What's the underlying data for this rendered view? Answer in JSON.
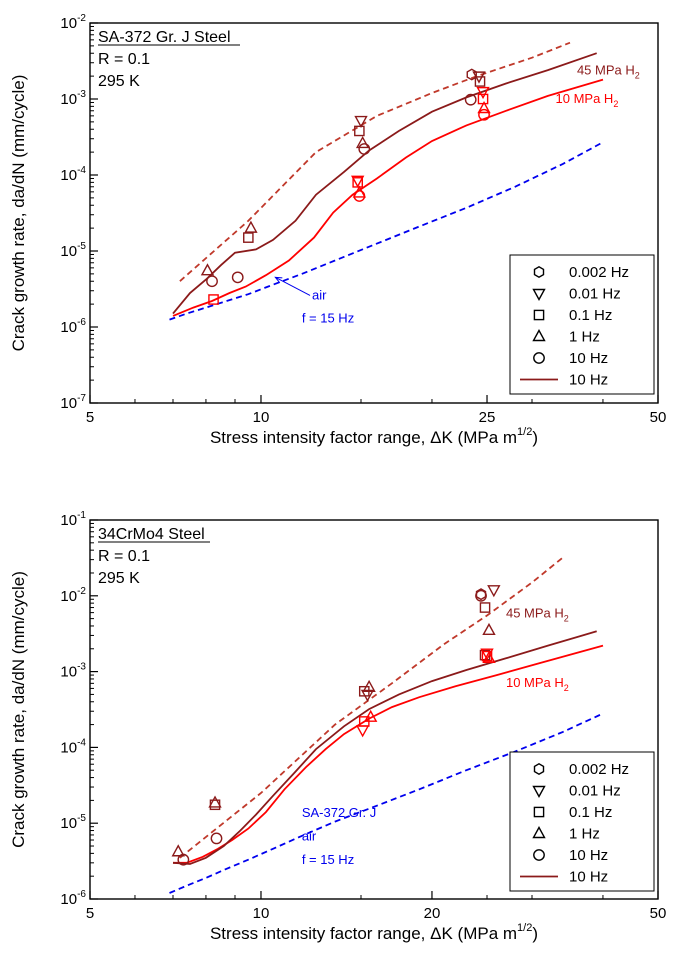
{
  "chart_data": [
    {
      "type": "scatter",
      "log_x": true,
      "log_y": true,
      "xlim": [
        5,
        50
      ],
      "ylim": [
        1e-07,
        0.01
      ],
      "xticks": [
        5,
        10,
        25,
        50
      ],
      "yticks": [
        {
          "v": 1e-07,
          "m": "10",
          "e": "-7"
        },
        {
          "v": 1e-06,
          "m": "10",
          "e": "-6"
        },
        {
          "v": 1e-05,
          "m": "10",
          "e": "-5"
        },
        {
          "v": 0.0001,
          "m": "10",
          "e": "-4"
        },
        {
          "v": 0.001,
          "m": "10",
          "e": "-3"
        },
        {
          "v": 0.01,
          "m": "10",
          "e": "-2"
        }
      ],
      "xlabel": {
        "main": "Stress intensity factor range, ΔK  (MPa m",
        "sup": "1/2",
        "end": ")"
      },
      "ylabel": "Crack growth rate, da/dN  (mm/cycle)",
      "info": {
        "title": "SA-372 Gr. J Steel",
        "line1": "R = 0.1",
        "line2": "295 K"
      },
      "annotations": [
        {
          "id": "label-45",
          "text": "45 MPa H",
          "sub": "2",
          "color": "#8b1a1a",
          "x": 36,
          "y": 0.0021
        },
        {
          "id": "label-10",
          "text": "10 MPa H",
          "sub": "2",
          "color": "#ff0000",
          "x": 33,
          "y": 0.00088
        },
        {
          "id": "label-air",
          "text": "air",
          "color": "#0000ee",
          "x": 12.3,
          "y": 2.3e-06
        },
        {
          "id": "label-f",
          "text": "f = 15 Hz",
          "color": "#0000ee",
          "x": 11.8,
          "y": 1.15e-06
        }
      ],
      "air_arrow": {
        "from": [
          12.2,
          2.6e-06
        ],
        "to": [
          10.6,
          4.5e-06
        ]
      },
      "legend": [
        {
          "marker": "hexagon",
          "label": "0.002 Hz"
        },
        {
          "marker": "triangle-down",
          "label": "0.01 Hz"
        },
        {
          "marker": "square",
          "label": "0.1 Hz"
        },
        {
          "marker": "triangle-up",
          "label": "1 Hz"
        },
        {
          "marker": "circle",
          "label": "10 Hz"
        },
        {
          "marker": "line",
          "label": "10 Hz"
        }
      ],
      "series": [
        {
          "key": "air",
          "color": "#0000ee",
          "dash": true,
          "x": [
            6.9,
            7.4,
            8.0,
            8.7,
            9.5,
            10.5,
            11.8,
            13.5,
            16,
            19,
            23,
            28,
            34,
            40
          ],
          "y": [
            1.25e-06,
            1.5e-06,
            1.8e-06,
            2.2e-06,
            2.7e-06,
            3.6e-06,
            5e-06,
            7.5e-06,
            1.25e-05,
            2.1e-05,
            3.7e-05,
            7e-05,
            0.00014,
            0.00027
          ]
        },
        {
          "key": "h2-10-curve",
          "color": "#ff0000",
          "dash": false,
          "x": [
            7.0,
            7.6,
            8.2,
            8.8,
            9.4,
            10.2,
            11.2,
            12.4,
            13.4,
            14.5,
            16,
            18,
            20,
            23,
            27,
            32,
            40
          ],
          "y": [
            1.4e-06,
            1.8e-06,
            2.2e-06,
            2.8e-06,
            3.4e-06,
            4.8e-06,
            7.5e-06,
            1.5e-05,
            3.2e-05,
            5.5e-05,
            9e-05,
            0.00017,
            0.00028,
            0.00045,
            0.0007,
            0.0011,
            0.0018
          ]
        },
        {
          "key": "h2-45-curve",
          "color": "#8b1a1a",
          "dash": false,
          "x": [
            7.0,
            7.5,
            8.0,
            8.5,
            9.0,
            9.8,
            10.5,
            11.5,
            12.5,
            14,
            15.5,
            17.5,
            20,
            23,
            27,
            32,
            39
          ],
          "y": [
            1.5e-06,
            2.8e-06,
            4.2e-06,
            6.5e-06,
            9.5e-06,
            1.05e-05,
            1.4e-05,
            2.5e-05,
            5.5e-05,
            0.00011,
            0.00021,
            0.00038,
            0.00068,
            0.00105,
            0.0016,
            0.0024,
            0.004
          ]
        },
        {
          "key": "h2-45-dashed",
          "color": "#c0392b",
          "dash": true,
          "x": [
            7.2,
            9.5,
            12.5,
            16,
            20,
            24,
            30,
            35
          ],
          "y": [
            4e-06,
            2.5e-05,
            0.0002,
            0.0006,
            0.0012,
            0.002,
            0.0035,
            0.0055
          ]
        },
        {
          "key": "pts-45",
          "color": "#8b1a1a",
          "points": [
            {
              "m": "triangle-up",
              "x": 8.05,
              "y": 5.5e-06
            },
            {
              "m": "circle",
              "x": 8.2,
              "y": 4e-06
            },
            {
              "m": "square",
              "x": 9.5,
              "y": 1.5e-05
            },
            {
              "m": "triangle-up",
              "x": 9.6,
              "y": 2e-05
            },
            {
              "m": "circle",
              "x": 9.1,
              "y": 4.5e-06
            },
            {
              "m": "triangle-down",
              "x": 15.0,
              "y": 0.00052
            },
            {
              "m": "square",
              "x": 14.9,
              "y": 0.00038
            },
            {
              "m": "triangle-up",
              "x": 15.1,
              "y": 0.00026
            },
            {
              "m": "circle",
              "x": 15.2,
              "y": 0.00022
            },
            {
              "m": "hexagon",
              "x": 23.5,
              "y": 0.0021
            },
            {
              "m": "triangle-down",
              "x": 24.2,
              "y": 0.002
            },
            {
              "m": "square",
              "x": 24.3,
              "y": 0.0017
            },
            {
              "m": "circle",
              "x": 23.4,
              "y": 0.00098
            }
          ]
        },
        {
          "key": "pts-10",
          "color": "#ff0000",
          "points": [
            {
              "m": "square",
              "x": 8.25,
              "y": 2.3e-06
            },
            {
              "m": "triangle-down",
              "x": 14.8,
              "y": 8.5e-05
            },
            {
              "m": "square",
              "x": 14.8,
              "y": 8e-05
            },
            {
              "m": "triangle-up",
              "x": 14.9,
              "y": 5.8e-05
            },
            {
              "m": "circle",
              "x": 14.9,
              "y": 5.3e-05
            },
            {
              "m": "triangle-down",
              "x": 24.6,
              "y": 0.00125
            },
            {
              "m": "square",
              "x": 24.6,
              "y": 0.001
            },
            {
              "m": "triangle-up",
              "x": 24.7,
              "y": 0.00075
            },
            {
              "m": "circle",
              "x": 24.7,
              "y": 0.00062
            }
          ]
        }
      ]
    },
    {
      "type": "scatter",
      "log_x": true,
      "log_y": true,
      "xlim": [
        5,
        50
      ],
      "ylim": [
        1e-06,
        0.1
      ],
      "xticks": [
        5,
        10,
        20,
        50
      ],
      "yticks": [
        {
          "v": 1e-06,
          "m": "10",
          "e": "-6"
        },
        {
          "v": 1e-05,
          "m": "10",
          "e": "-5"
        },
        {
          "v": 0.0001,
          "m": "10",
          "e": "-4"
        },
        {
          "v": 0.001,
          "m": "10",
          "e": "-3"
        },
        {
          "v": 0.01,
          "m": "10",
          "e": "-2"
        },
        {
          "v": 0.1,
          "m": "10",
          "e": "-1"
        }
      ],
      "xlabel": {
        "main": "Stress intensity factor range, ΔK  (MPa m",
        "sup": "1/2",
        "end": ")"
      },
      "ylabel": "Crack growth rate, da/dN  (mm/cycle)",
      "info": {
        "title": "34CrMo4 Steel",
        "line1": "R = 0.1",
        "line2": "295 K"
      },
      "annotations": [
        {
          "id": "label-45",
          "text": "45 MPa H",
          "sub": "2",
          "color": "#8b1a1a",
          "x": 27,
          "y": 0.0052
        },
        {
          "id": "label-10",
          "text": "10 MPa H",
          "sub": "2",
          "color": "#ff0000",
          "x": 27,
          "y": 0.00063
        },
        {
          "id": "label-sa",
          "text": "SA-372 Gr. J",
          "color": "#0000ee",
          "x": 11.8,
          "y": 1.2e-05
        },
        {
          "id": "label-air",
          "text": "air",
          "color": "#0000ee",
          "x": 11.8,
          "y": 5.9e-06
        },
        {
          "id": "label-f",
          "text": "f = 15 Hz",
          "color": "#0000ee",
          "x": 11.8,
          "y": 2.9e-06
        }
      ],
      "legend": [
        {
          "marker": "hexagon",
          "label": "0.002 Hz"
        },
        {
          "marker": "triangle-down",
          "label": "0.01 Hz"
        },
        {
          "marker": "square",
          "label": "0.1 Hz"
        },
        {
          "marker": "triangle-up",
          "label": "1 Hz"
        },
        {
          "marker": "circle",
          "label": "10 Hz"
        },
        {
          "marker": "line",
          "label": "10 Hz"
        }
      ],
      "series": [
        {
          "key": "air",
          "color": "#0000ee",
          "dash": true,
          "x": [
            6.9,
            7.4,
            8.0,
            8.7,
            9.5,
            10.5,
            11.8,
            13.5,
            16,
            19,
            23,
            28,
            34,
            40
          ],
          "y": [
            1.2e-06,
            1.5e-06,
            1.9e-06,
            2.5e-06,
            3.3e-06,
            4.6e-06,
            6.8e-06,
            1.05e-05,
            1.7e-05,
            2.8e-05,
            5e-05,
            8.8e-05,
            0.00016,
            0.00028
          ]
        },
        {
          "key": "h2-10-curve",
          "color": "#ff0000",
          "dash": false,
          "x": [
            7.0,
            7.4,
            7.9,
            8.4,
            8.9,
            9.5,
            10.2,
            11,
            12,
            13,
            14,
            15.5,
            17,
            19,
            22,
            26,
            31,
            40
          ],
          "y": [
            3e-06,
            3e-06,
            3.6e-06,
            4.6e-06,
            6e-06,
            8.5e-06,
            1.4e-05,
            2.8e-05,
            5.5e-05,
            9.5e-05,
            0.00015,
            0.00024,
            0.00034,
            0.00046,
            0.00064,
            0.0009,
            0.0013,
            0.0022
          ]
        },
        {
          "key": "h2-45-curve",
          "color": "#8b1a1a",
          "dash": false,
          "x": [
            7.0,
            7.5,
            8.0,
            8.6,
            9.2,
            9.8,
            10.5,
            11.5,
            12.5,
            14,
            15.5,
            17.5,
            20,
            23,
            27,
            32,
            39
          ],
          "y": [
            3e-06,
            2.9e-06,
            3.5e-06,
            5e-06,
            8e-06,
            1.3e-05,
            2.3e-05,
            4.8e-05,
            9.5e-05,
            0.00019,
            0.00032,
            0.0005,
            0.00075,
            0.00105,
            0.0015,
            0.0022,
            0.0034
          ]
        },
        {
          "key": "h2-45-dashed",
          "color": "#c0392b",
          "dash": true,
          "x": [
            7.2,
            10,
            13.5,
            17,
            21,
            25,
            30,
            34
          ],
          "y": [
            3.5e-06,
            2.5e-05,
            0.0002,
            0.0007,
            0.0023,
            0.0055,
            0.015,
            0.032
          ]
        },
        {
          "key": "pts-45",
          "color": "#8b1a1a",
          "points": [
            {
              "m": "triangle-up",
              "x": 7.15,
              "y": 4.2e-06
            },
            {
              "m": "circle",
              "x": 7.3,
              "y": 3.3e-06
            },
            {
              "m": "triangle-up",
              "x": 8.3,
              "y": 1.85e-05
            },
            {
              "m": "square",
              "x": 8.3,
              "y": 1.75e-05
            },
            {
              "m": "circle",
              "x": 8.35,
              "y": 6.3e-06
            },
            {
              "m": "square",
              "x": 15.2,
              "y": 0.00055
            },
            {
              "m": "triangle-up",
              "x": 15.5,
              "y": 0.00062
            },
            {
              "m": "triangle-down",
              "x": 15.4,
              "y": 0.0005
            },
            {
              "m": "hexagon",
              "x": 24.4,
              "y": 0.0105
            },
            {
              "m": "circle",
              "x": 24.4,
              "y": 0.01
            },
            {
              "m": "triangle-down",
              "x": 25.7,
              "y": 0.012
            },
            {
              "m": "square",
              "x": 24.8,
              "y": 0.007
            },
            {
              "m": "triangle-up",
              "x": 25.2,
              "y": 0.0035
            },
            {
              "m": "square",
              "x": 24.8,
              "y": 0.00165
            }
          ]
        },
        {
          "key": "pts-10",
          "color": "#ff0000",
          "points": [
            {
              "m": "triangle-down",
              "x": 15.1,
              "y": 0.00017
            },
            {
              "m": "square",
              "x": 15.2,
              "y": 0.00022
            },
            {
              "m": "triangle-up",
              "x": 15.6,
              "y": 0.00025
            },
            {
              "m": "triangle-down",
              "x": 25.0,
              "y": 0.00175
            },
            {
              "m": "square",
              "x": 25.0,
              "y": 0.0016
            },
            {
              "m": "triangle-up",
              "x": 25.2,
              "y": 0.0015
            }
          ]
        }
      ]
    }
  ]
}
